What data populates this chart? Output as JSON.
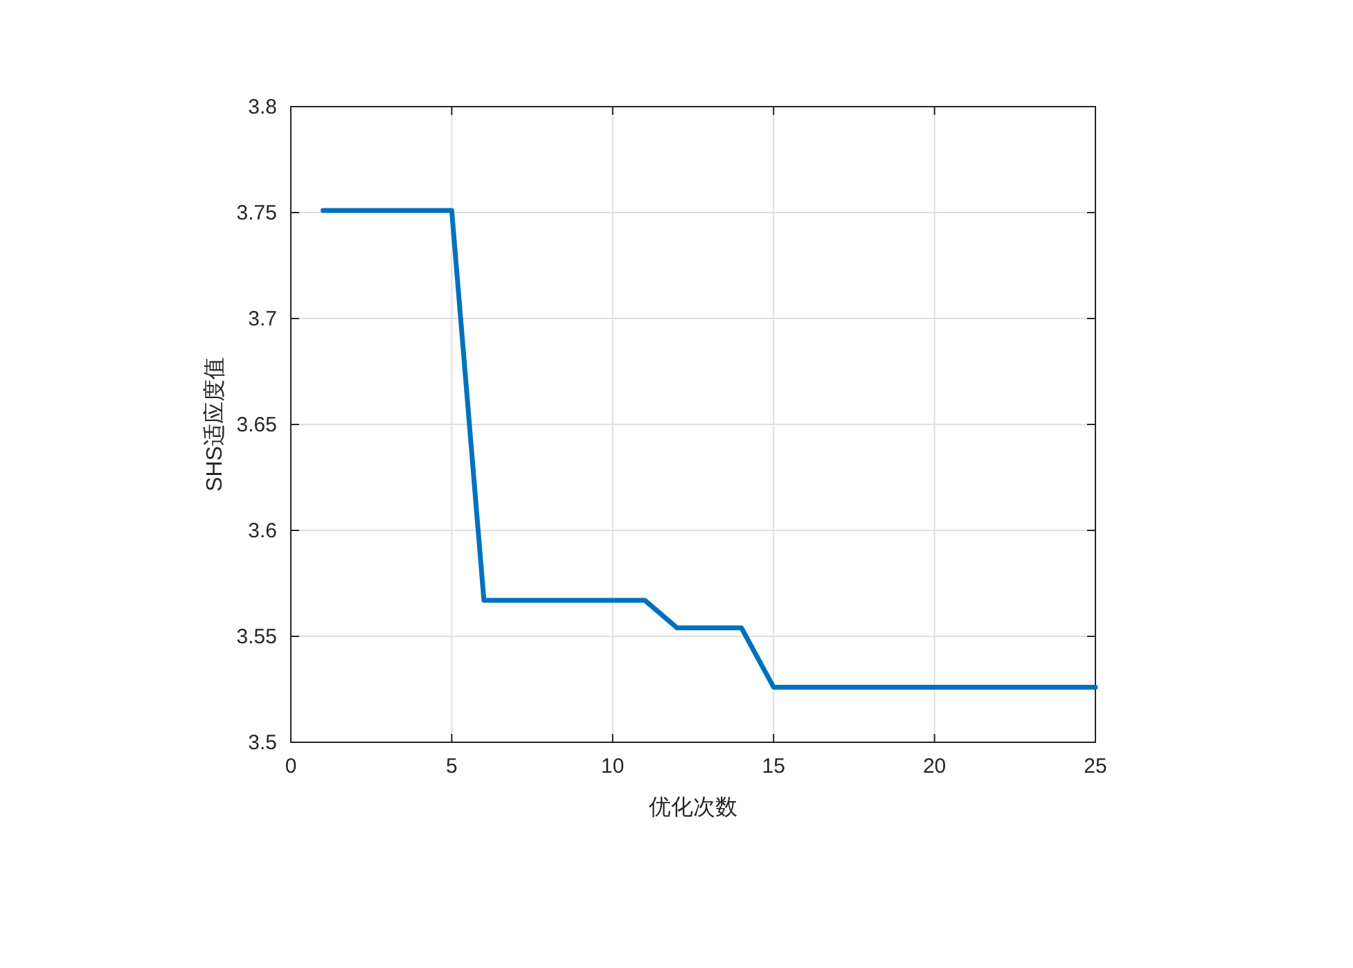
{
  "chart_data": {
    "type": "line",
    "x": [
      1,
      2,
      3,
      4,
      5,
      6,
      7,
      8,
      9,
      10,
      11,
      12,
      13,
      14,
      15,
      16,
      17,
      18,
      19,
      20,
      21,
      22,
      23,
      24,
      25
    ],
    "series": [
      {
        "color": "#0072bd",
        "values": [
          3.751,
          3.751,
          3.751,
          3.751,
          3.751,
          3.567,
          3.567,
          3.567,
          3.567,
          3.567,
          3.567,
          3.554,
          3.554,
          3.554,
          3.526,
          3.526,
          3.526,
          3.526,
          3.526,
          3.526,
          3.526,
          3.526,
          3.526,
          3.526,
          3.526
        ]
      }
    ],
    "xlim": [
      0,
      25
    ],
    "ylim": [
      3.5,
      3.8
    ],
    "xticks": [
      0,
      5,
      10,
      15,
      20,
      25
    ],
    "yticks": [
      3.5,
      3.55,
      3.6,
      3.65,
      3.7,
      3.75,
      3.8
    ],
    "xlabel": "优化次数",
    "ylabel": "SHS适应度值",
    "grid": true
  }
}
